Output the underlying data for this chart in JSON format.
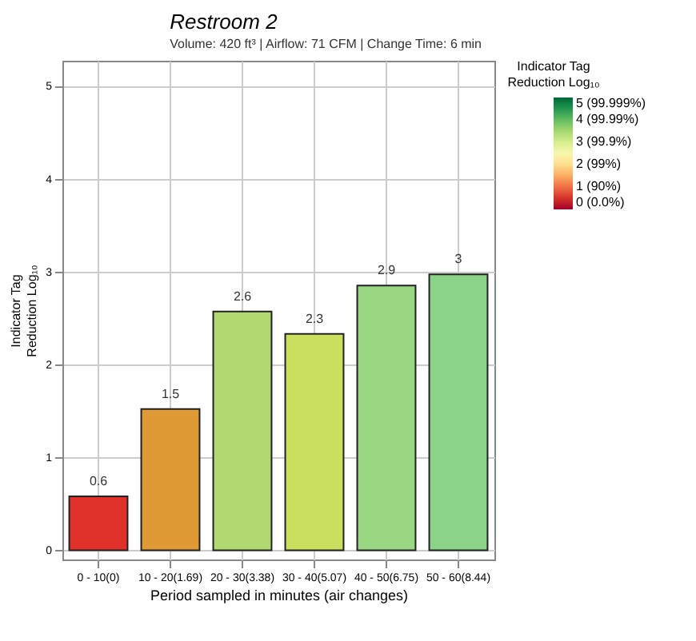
{
  "chart_data": {
    "type": "bar",
    "title": "Restroom 2",
    "subtitle": "Volume: 420 ft³ | Airflow: 71 CFM | Change Time: 6 min",
    "xlabel": "Period sampled in minutes (air changes)",
    "ylabel": "Indicator Tag\nReduction Log₁₀",
    "categories": [
      "0 - 10(0)",
      "10 - 20(1.69)",
      "20 - 30(3.38)",
      "30 - 40(5.07)",
      "40 - 50(6.75)",
      "50 - 60(8.44)"
    ],
    "values": [
      0.58,
      1.52,
      2.57,
      2.33,
      2.85,
      2.97
    ],
    "value_labels": [
      "0.6",
      "1.5",
      "2.6",
      "2.3",
      "2.9",
      "3"
    ],
    "colors": [
      "#e0302a",
      "#e09a35",
      "#b2d970",
      "#cbdf5f",
      "#9ad783",
      "#8bd388"
    ],
    "ylim": [
      -0.1,
      5.27
    ],
    "yticks": [
      0,
      1,
      2,
      3,
      4,
      5
    ],
    "grid": true,
    "clabel": "Indicator Tag\nReduction Log₁₀",
    "clim": [
      0,
      5
    ],
    "cticks": [
      {
        "value": 0,
        "label": "0 (0.0%)"
      },
      {
        "value": 1,
        "label": "1 (90%)"
      },
      {
        "value": 2,
        "label": "2 (99%)"
      },
      {
        "value": 3,
        "label": "3 (99.9%)"
      },
      {
        "value": 4,
        "label": "4 (99.99%)"
      },
      {
        "value": 5,
        "label": "5 (99.999%)"
      }
    ]
  }
}
